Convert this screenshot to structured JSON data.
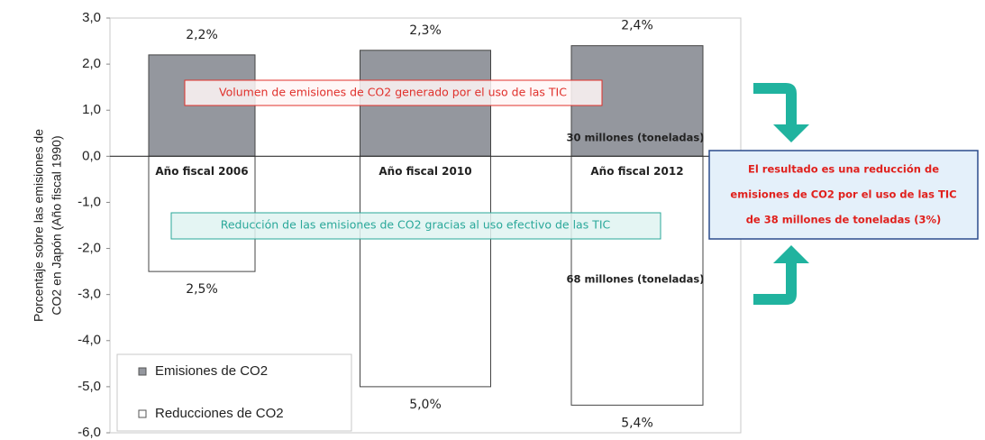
{
  "chart_data": {
    "type": "bar",
    "y_label": [
      "Porcentaje sobre las emisiones de",
      "CO2 en Japón (Año fiscal 1990)"
    ],
    "categories": [
      "Año fiscal  2006",
      "Año fiscal  2010",
      "Año fiscal 2012"
    ],
    "series": [
      {
        "name": "Emisiones de CO2",
        "color": "#94979e",
        "values": [
          2.2,
          2.3,
          2.4
        ],
        "value_labels": [
          "2,2%",
          "2,3%",
          "2,4%"
        ]
      },
      {
        "name": "Reducciones de CO2",
        "color": "#ffffff",
        "values": [
          -2.5,
          -5.0,
          -5.4
        ],
        "value_labels": [
          "2,5%",
          "5,0%",
          "5,4%"
        ]
      }
    ],
    "ylim": [
      -6,
      3
    ],
    "yticks": [
      {
        "value": 3,
        "label": "3,0"
      },
      {
        "value": 2,
        "label": "2,0"
      },
      {
        "value": 1,
        "label": "1,0"
      },
      {
        "value": 0,
        "label": "0,0"
      },
      {
        "value": -1,
        "label": "-1,0"
      },
      {
        "value": -2,
        "label": "-2,0"
      },
      {
        "value": -3,
        "label": "-3,0"
      },
      {
        "value": -4,
        "label": "-4,0"
      },
      {
        "value": -5,
        "label": "-5,0"
      },
      {
        "value": -6,
        "label": "-6,0"
      }
    ],
    "annotations": {
      "emissions": "Volumen de emisiones de CO2 generado por el uso de las TIC",
      "reductions": "Reducción de las emisiones de CO2 gracias al uso efectivo de las TIC",
      "emissions_total": "30 millones (toneladas)",
      "reductions_total": "68 millones (toneladas)",
      "result": [
        "El resultado es una reducción de",
        "emisiones de CO2 por el uso de las TIC",
        "de 38 millones de toneladas  (3%)"
      ]
    },
    "legend": "bottom-left"
  }
}
